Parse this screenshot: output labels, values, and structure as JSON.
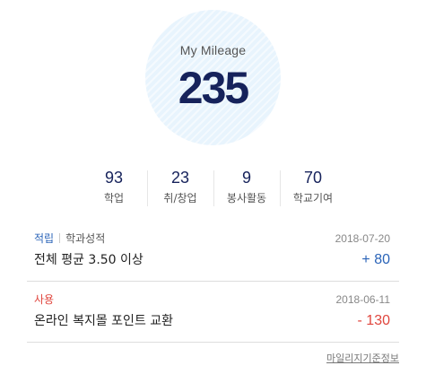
{
  "mileage": {
    "label": "My Mileage",
    "total": "235"
  },
  "stats": [
    {
      "value": "93",
      "label": "학업"
    },
    {
      "value": "23",
      "label": "취/창업"
    },
    {
      "value": "9",
      "label": "봉사활동"
    },
    {
      "value": "70",
      "label": "학교기여"
    }
  ],
  "history": [
    {
      "type": "적립",
      "category": "학과성적",
      "date": "2018-07-20",
      "description": "전체 평균 3.50 이상",
      "amount": "+ 80"
    },
    {
      "type": "사용",
      "category": "",
      "date": "2018-06-11",
      "description": "온라인 복지몰 포인트 교환",
      "amount": "- 130"
    }
  ],
  "footer": {
    "guide_link": "마일리지기준정보"
  },
  "colors": {
    "navy": "#16225b",
    "earn": "#2b64b8",
    "use": "#e0463e",
    "circle_bg": "#e8f4fd"
  }
}
